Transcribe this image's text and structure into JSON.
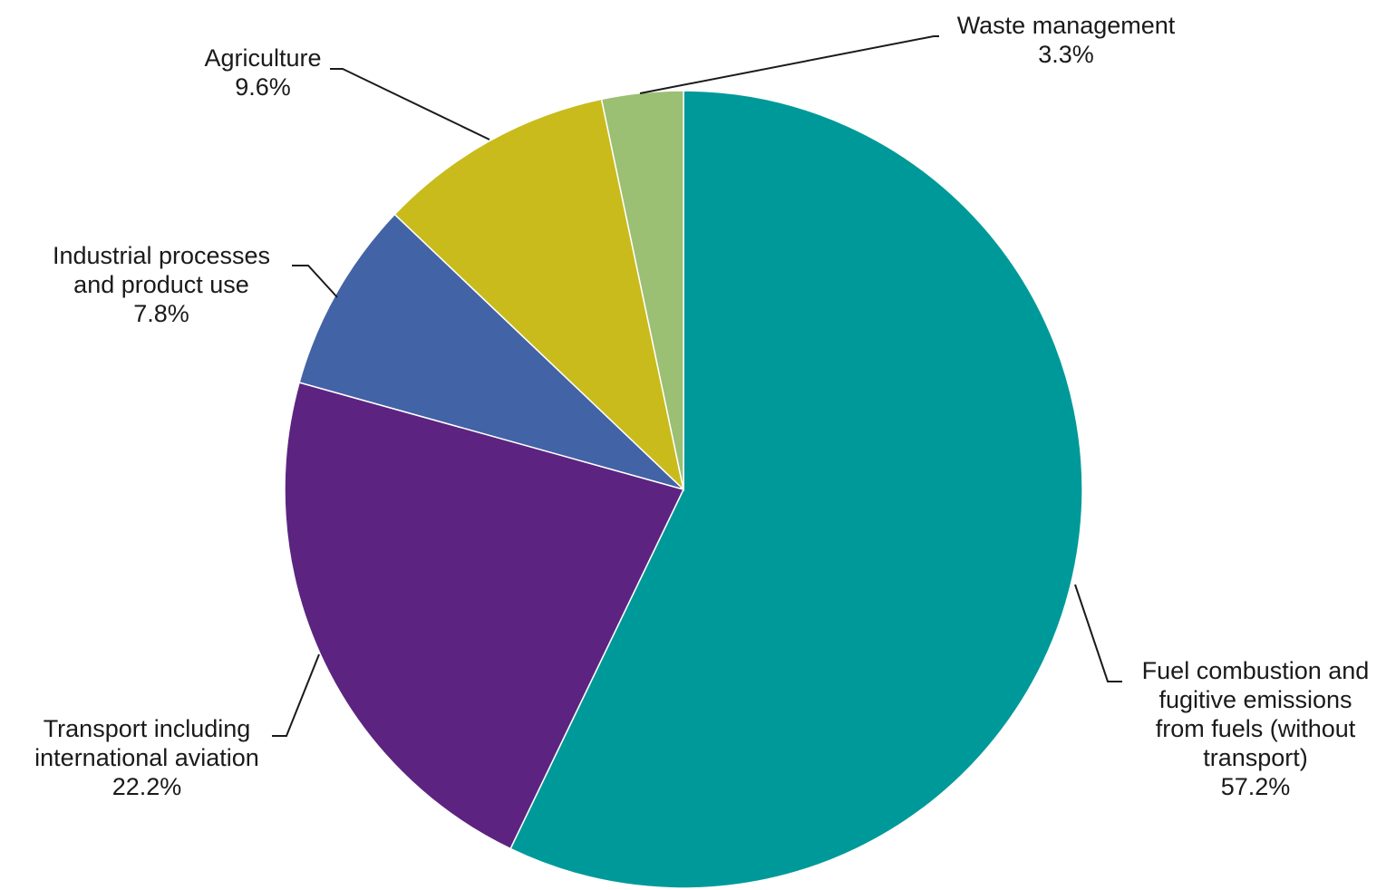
{
  "chart_data": {
    "type": "pie",
    "title": "",
    "start_angle_deg": 0,
    "direction": "clockwise",
    "slice_border_color": "#ffffff",
    "series": [
      {
        "name": "",
        "values": [
          {
            "label": "Fuel combustion and fugitive emissions from fuels (without transport)",
            "label_lines": [
              "Fuel combustion and",
              "fugitive emissions",
              "from fuels (without",
              "transport)"
            ],
            "value": 57.2,
            "value_label": "57.2%",
            "color": "#009999"
          },
          {
            "label": "Transport including international aviation",
            "label_lines": [
              "Transport including",
              "international aviation"
            ],
            "value": 22.2,
            "value_label": "22.2%",
            "color": "#5c2480"
          },
          {
            "label": "Industrial processes and product use",
            "label_lines": [
              "Industrial processes",
              "and product use"
            ],
            "value": 7.8,
            "value_label": "7.8%",
            "color": "#4263a6"
          },
          {
            "label": "Agriculture",
            "label_lines": [
              "Agriculture"
            ],
            "value": 9.6,
            "value_label": "9.6%",
            "color": "#c9bb1c"
          },
          {
            "label": "Waste management",
            "label_lines": [
              "Waste management"
            ],
            "value": 3.3,
            "value_label": "3.3%",
            "color": "#9bbf73"
          }
        ]
      }
    ]
  }
}
